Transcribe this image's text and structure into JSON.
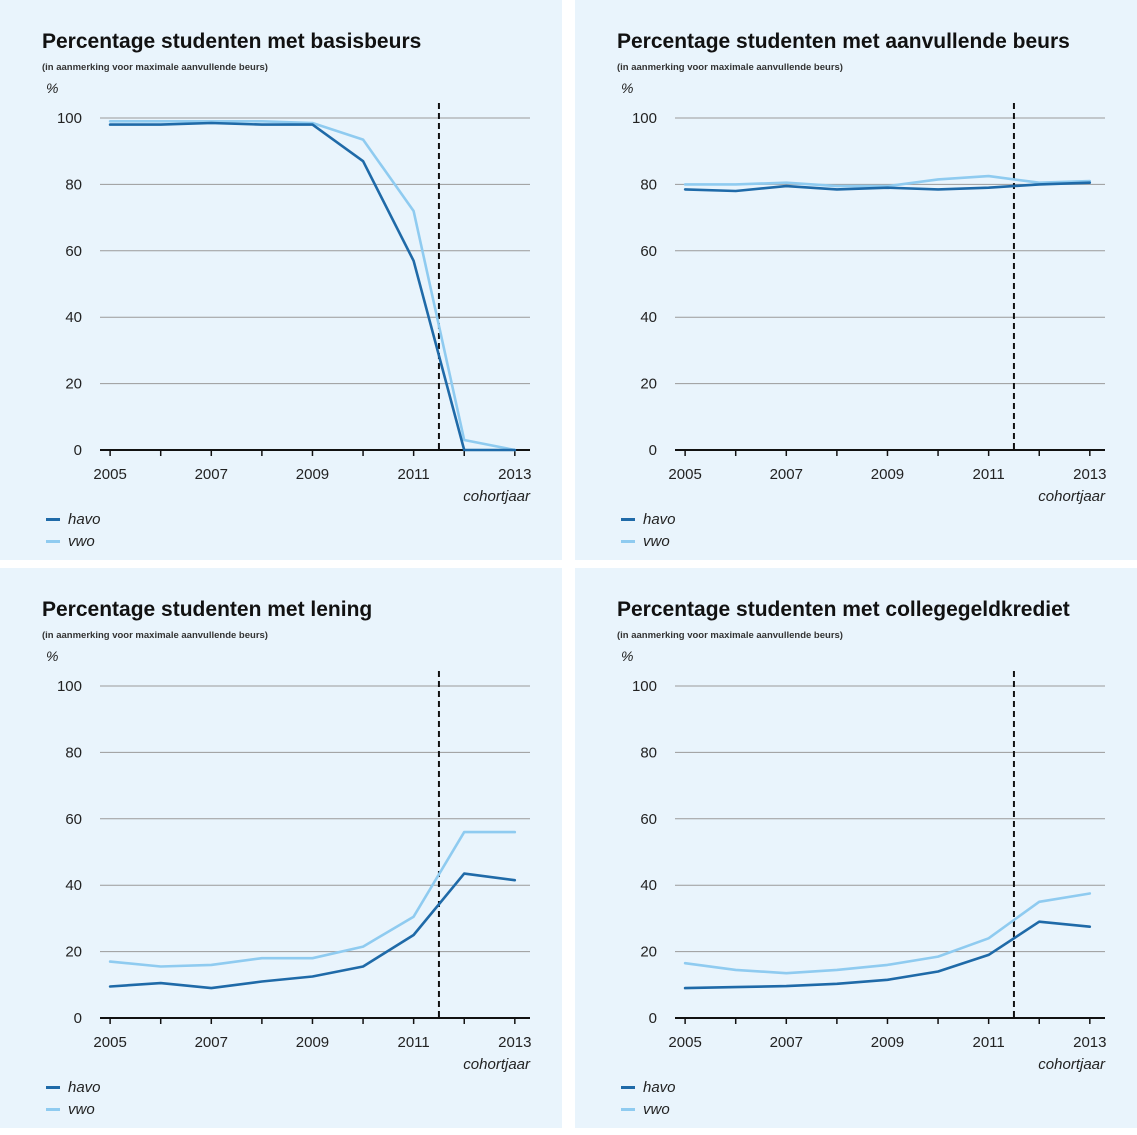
{
  "colors": {
    "havo": "#1f6aa8",
    "vwo": "#8fcbf0",
    "grid": "#9a9a9a",
    "axis": "#111111",
    "background": "#e9f4fc"
  },
  "legend": [
    {
      "label": "havo",
      "color": "#1f6aa8"
    },
    {
      "label": "vwo",
      "color": "#8fcbf0"
    }
  ],
  "chart_data": [
    {
      "type": "line",
      "title": "Percentage studenten met basisbeurs",
      "subtitle": "(in aanmerking voor maximale aanvullende beurs)",
      "ylabel": "%",
      "xlabel": "cohortjaar",
      "x": [
        2005,
        2006,
        2007,
        2008,
        2009,
        2010,
        2011,
        2012,
        2013
      ],
      "xticks": [
        2005,
        2007,
        2009,
        2011,
        2013
      ],
      "yticks": [
        0,
        20,
        40,
        60,
        80,
        100
      ],
      "xlim": [
        2004.8,
        2013.3
      ],
      "ylim": [
        0,
        100
      ],
      "vline": 2011.5,
      "grid": true,
      "legend_position": "bottom-left",
      "series": [
        {
          "name": "havo",
          "color": "#1f6aa8",
          "values": [
            98,
            98,
            98.5,
            98,
            98,
            87,
            57,
            0,
            0
          ]
        },
        {
          "name": "vwo",
          "color": "#8fcbf0",
          "values": [
            99,
            99,
            99,
            99,
            98.5,
            93.5,
            72,
            3,
            0
          ]
        }
      ]
    },
    {
      "type": "line",
      "title": "Percentage studenten met aanvullende beurs",
      "subtitle": "(in aanmerking voor maximale aanvullende beurs)",
      "ylabel": "%",
      "xlabel": "cohortjaar",
      "x": [
        2005,
        2006,
        2007,
        2008,
        2009,
        2010,
        2011,
        2012,
        2013
      ],
      "xticks": [
        2005,
        2007,
        2009,
        2011,
        2013
      ],
      "yticks": [
        0,
        20,
        40,
        60,
        80,
        100
      ],
      "xlim": [
        2004.8,
        2013.3
      ],
      "ylim": [
        0,
        100
      ],
      "vline": 2011.5,
      "grid": true,
      "legend_position": "bottom-left",
      "series": [
        {
          "name": "havo",
          "color": "#1f6aa8",
          "values": [
            78.5,
            78,
            79.5,
            78.5,
            79,
            78.5,
            79,
            80,
            80.5
          ]
        },
        {
          "name": "vwo",
          "color": "#8fcbf0",
          "values": [
            80,
            80,
            80.5,
            79.5,
            79.5,
            81.5,
            82.5,
            80.5,
            81
          ]
        }
      ]
    },
    {
      "type": "line",
      "title": "Percentage studenten met lening",
      "subtitle": "(in aanmerking voor maximale aanvullende beurs)",
      "ylabel": "%",
      "xlabel": "cohortjaar",
      "x": [
        2005,
        2006,
        2007,
        2008,
        2009,
        2010,
        2011,
        2012,
        2013
      ],
      "xticks": [
        2005,
        2007,
        2009,
        2011,
        2013
      ],
      "yticks": [
        0,
        20,
        40,
        60,
        80,
        100
      ],
      "xlim": [
        2004.8,
        2013.3
      ],
      "ylim": [
        0,
        100
      ],
      "vline": 2011.5,
      "grid": true,
      "legend_position": "bottom-left",
      "series": [
        {
          "name": "havo",
          "color": "#1f6aa8",
          "values": [
            9.5,
            10.5,
            9,
            11,
            12.5,
            15.5,
            25,
            43.5,
            41.5
          ]
        },
        {
          "name": "vwo",
          "color": "#8fcbf0",
          "values": [
            17,
            15.5,
            16,
            18,
            18,
            21.5,
            30.5,
            56,
            56
          ]
        }
      ]
    },
    {
      "type": "line",
      "title": "Percentage studenten met collegegeldkrediet",
      "subtitle": "(in aanmerking voor maximale aanvullende beurs)",
      "ylabel": "%",
      "xlabel": "cohortjaar",
      "x": [
        2005,
        2006,
        2007,
        2008,
        2009,
        2010,
        2011,
        2012,
        2013
      ],
      "xticks": [
        2005,
        2007,
        2009,
        2011,
        2013
      ],
      "yticks": [
        0,
        20,
        40,
        60,
        80,
        100
      ],
      "xlim": [
        2004.8,
        2013.3
      ],
      "ylim": [
        0,
        100
      ],
      "vline": 2011.5,
      "grid": true,
      "legend_position": "bottom-left",
      "series": [
        {
          "name": "havo",
          "color": "#1f6aa8",
          "values": [
            9,
            9.3,
            9.6,
            10.3,
            11.5,
            14,
            19,
            29,
            27.5
          ]
        },
        {
          "name": "vwo",
          "color": "#8fcbf0",
          "values": [
            16.5,
            14.5,
            13.5,
            14.5,
            16,
            18.5,
            24,
            35,
            37.5
          ]
        }
      ]
    }
  ]
}
